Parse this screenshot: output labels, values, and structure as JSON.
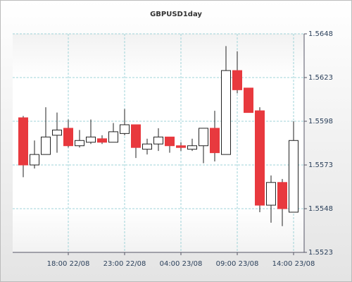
{
  "chart_data": {
    "type": "candlestick",
    "title": "GBPUSD1day",
    "categories": [
      null,
      null,
      null,
      null,
      "18:00 22/08",
      null,
      null,
      null,
      null,
      "23:00 22/08",
      null,
      null,
      null,
      null,
      "04:00 23/08",
      null,
      null,
      null,
      null,
      "09:00 23/08",
      null,
      null,
      null,
      null,
      "14:00 23/08"
    ],
    "open": [
      1.56,
      1.5573,
      1.5579,
      1.559,
      1.5594,
      1.5584,
      1.5586,
      1.5588,
      1.5586,
      1.5591,
      1.5596,
      1.5582,
      1.5585,
      1.5589,
      1.5584,
      1.5582,
      1.5584,
      1.5594,
      1.5579,
      1.5627,
      1.5617,
      1.5604,
      1.555,
      1.5563,
      1.5546
    ],
    "high": [
      1.5601,
      1.5587,
      1.5606,
      1.5603,
      1.5599,
      1.5593,
      1.5599,
      1.559,
      1.5597,
      1.5605,
      1.5596,
      1.5588,
      1.5594,
      1.5589,
      1.5586,
      1.5588,
      1.5594,
      1.5604,
      1.5641,
      1.5638,
      1.5617,
      1.5606,
      1.5567,
      1.5565,
      1.5598
    ],
    "low": [
      1.5566,
      1.5571,
      1.5579,
      1.558,
      1.5583,
      1.5583,
      1.5585,
      1.5585,
      1.5586,
      1.559,
      1.5577,
      1.5579,
      1.5581,
      1.558,
      1.5581,
      1.5581,
      1.5574,
      1.5575,
      1.5579,
      1.5614,
      1.5603,
      1.5546,
      1.554,
      1.5538,
      1.5546
    ],
    "close": [
      1.5573,
      1.5579,
      1.5589,
      1.5593,
      1.5584,
      1.5587,
      1.5589,
      1.5586,
      1.5592,
      1.5596,
      1.5583,
      1.5585,
      1.5589,
      1.5584,
      1.5583,
      1.5584,
      1.5594,
      1.558,
      1.5627,
      1.5616,
      1.5603,
      1.555,
      1.5563,
      1.5548,
      1.5587
    ],
    "up_color": "#ffffff",
    "down_color": "#e8393e",
    "ylim": [
      1.5523,
      1.5648
    ],
    "yticks": [
      1.5523,
      1.5548,
      1.5573,
      1.5598,
      1.5623,
      1.5648
    ],
    "grid": true
  }
}
